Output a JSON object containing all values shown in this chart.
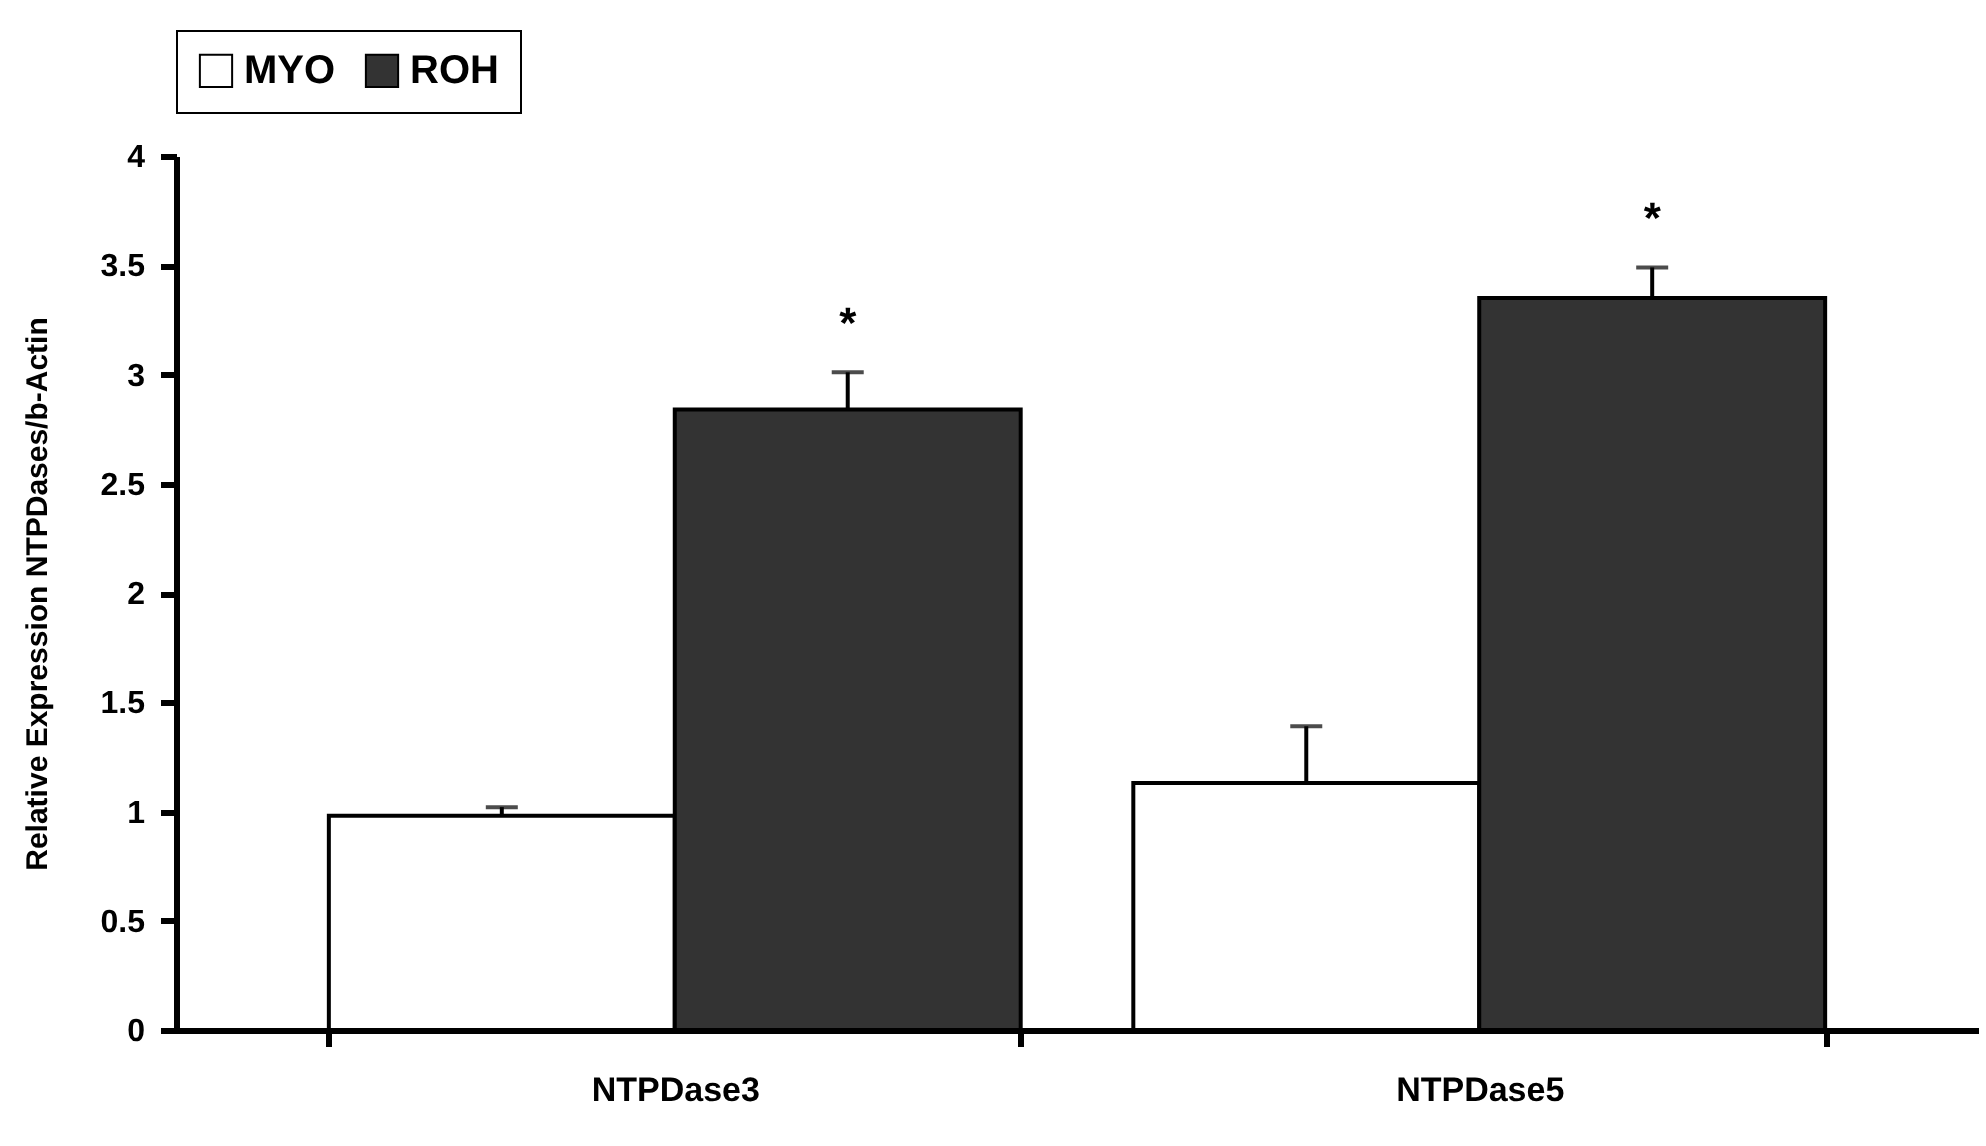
{
  "chart_data": {
    "type": "bar",
    "ylabel": "Relative Expression NTPDases/b-Actin",
    "categories": [
      "NTPDase3",
      "NTPDase5"
    ],
    "series": [
      {
        "name": "MYO",
        "color": "#ffffff",
        "values": [
          0.98,
          1.13
        ],
        "errors": [
          [
            0.98,
            1.02
          ],
          [
            1.13,
            1.39
          ]
        ]
      },
      {
        "name": "ROH",
        "color": "#333333",
        "values": [
          2.84,
          3.35
        ],
        "errors": [
          [
            2.84,
            3.01
          ],
          [
            3.35,
            3.49
          ]
        ]
      }
    ],
    "ylim": [
      0,
      4
    ],
    "yticks": [
      0,
      0.5,
      1,
      1.5,
      2,
      2.5,
      3,
      3.5,
      4
    ],
    "legend": "top",
    "annotations": [
      "*",
      "*"
    ]
  }
}
